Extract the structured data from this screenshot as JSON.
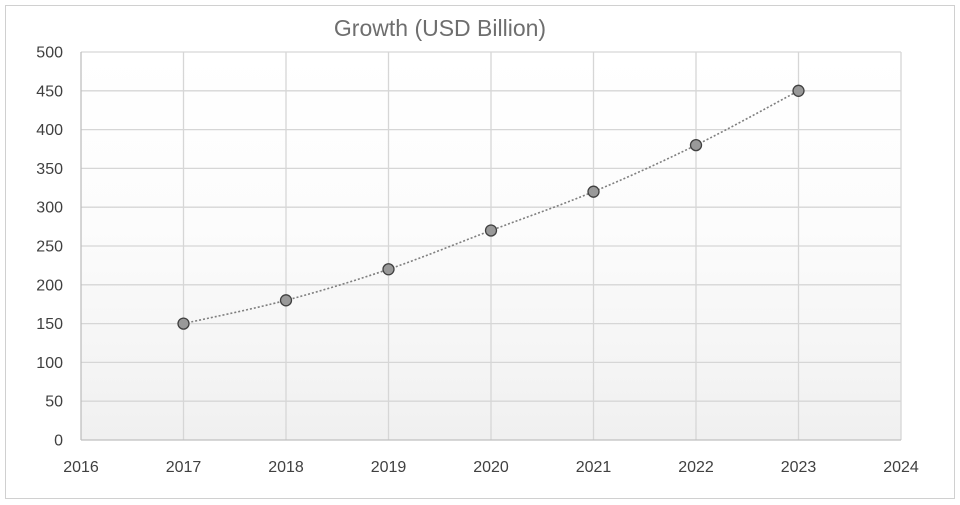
{
  "chart_data": {
    "type": "scatter",
    "title": "Growth (USD Billion)",
    "xlabel": "",
    "ylabel": "",
    "xlim": [
      2016,
      2024
    ],
    "ylim": [
      0,
      500
    ],
    "x_ticks": [
      2016,
      2017,
      2018,
      2019,
      2020,
      2021,
      2022,
      2023,
      2024
    ],
    "y_ticks": [
      0,
      50,
      100,
      150,
      200,
      250,
      300,
      350,
      400,
      450,
      500
    ],
    "grid": true,
    "legend": "none",
    "connect_points": "dotted-smooth-line",
    "series": [
      {
        "x": [
          2017,
          2018,
          2019,
          2020,
          2021,
          2022,
          2023
        ],
        "y": [
          150,
          180,
          220,
          270,
          320,
          380,
          450
        ],
        "marker_color": "#999999",
        "line_color": "#7f7f7f"
      }
    ]
  }
}
